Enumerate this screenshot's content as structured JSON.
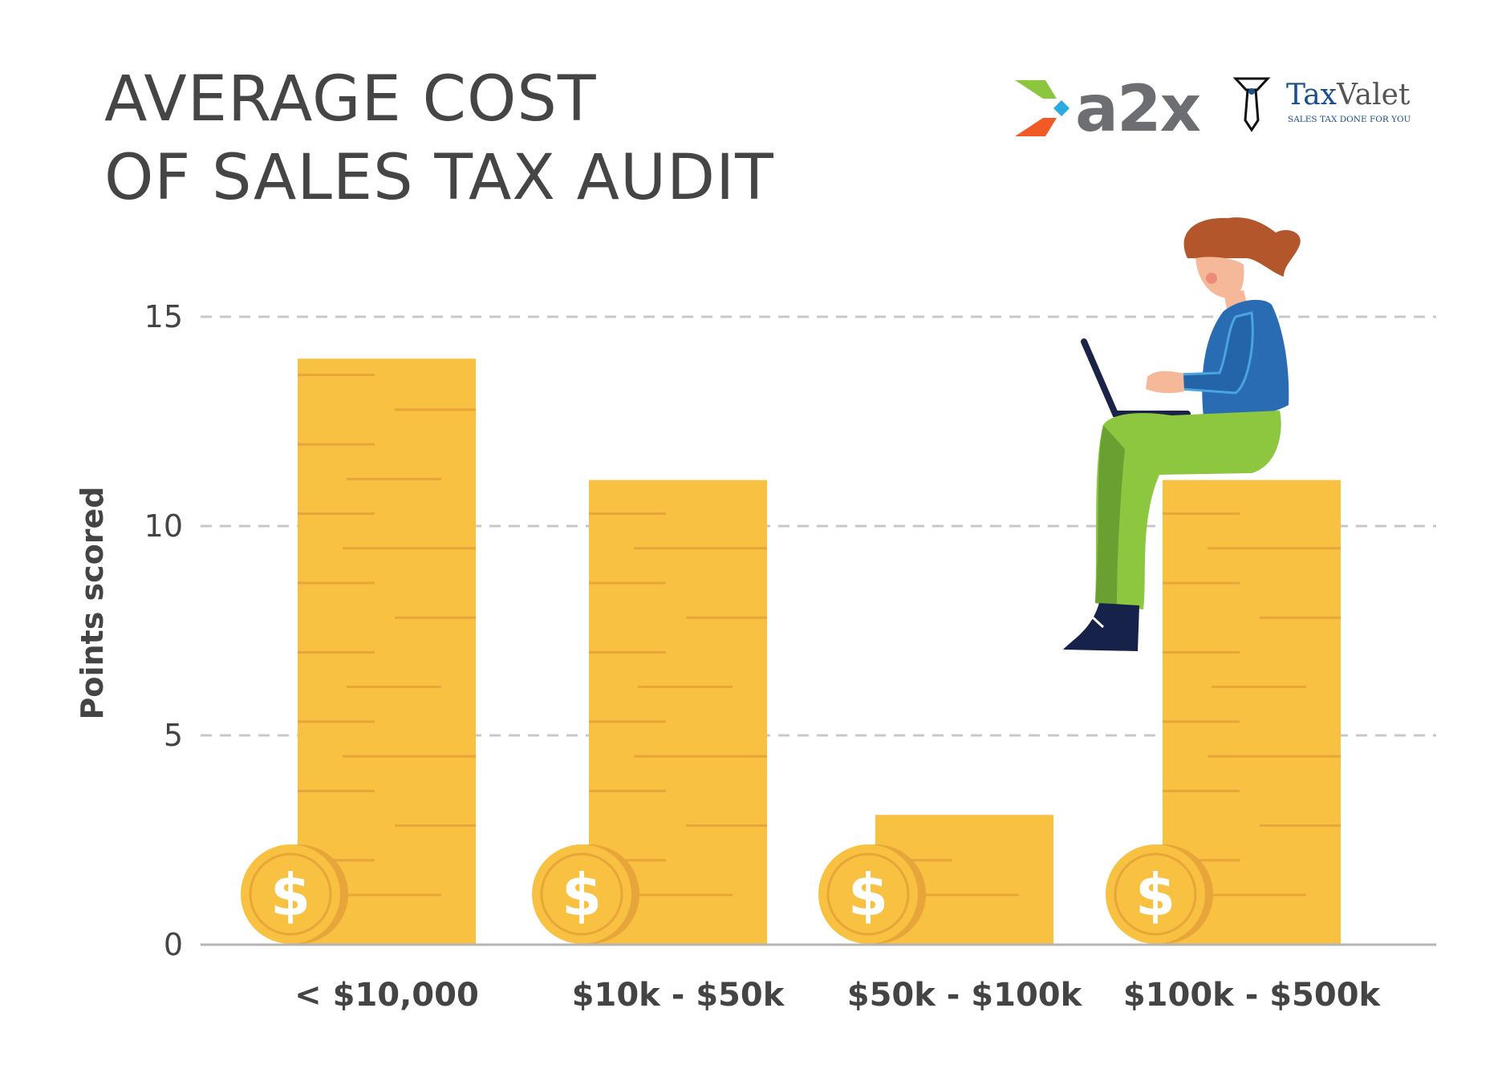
{
  "title": {
    "line1": "AVERAGE COST",
    "line2": "OF SALES TAX AUDIT"
  },
  "logos": {
    "a2x": {
      "text": "a2x",
      "colors": {
        "green": "#8cc63f",
        "orange": "#f15a24",
        "blue": "#29abe2",
        "gray": "#6d6e71"
      }
    },
    "taxvalet": {
      "name_part1": "Tax",
      "name_part2": "Valet",
      "tagline": "SALES TAX DONE FOR YOU",
      "color": "#1b4f8c"
    }
  },
  "colors": {
    "bar": "#f9c141",
    "bar_stripe": "#e8a53a",
    "coin": "#f9c141",
    "coin_shadow": "#e8a53a",
    "grid": "#c8c8c8",
    "axis": "#b5b5b5",
    "text": "#444444"
  },
  "chart_data": {
    "type": "bar",
    "title": "AVERAGE COST OF SALES TAX AUDIT",
    "categories": [
      "< $10,000",
      "$10k - $50k",
      "$50k - $100k",
      "$100k - $500k"
    ],
    "values": [
      14,
      11.1,
      3.1,
      11.1
    ],
    "xlabel": "",
    "ylabel": "Points scored",
    "ylim": [
      0,
      15
    ],
    "yticks": [
      0,
      5,
      10,
      15
    ],
    "grid": true,
    "legend": "none"
  }
}
